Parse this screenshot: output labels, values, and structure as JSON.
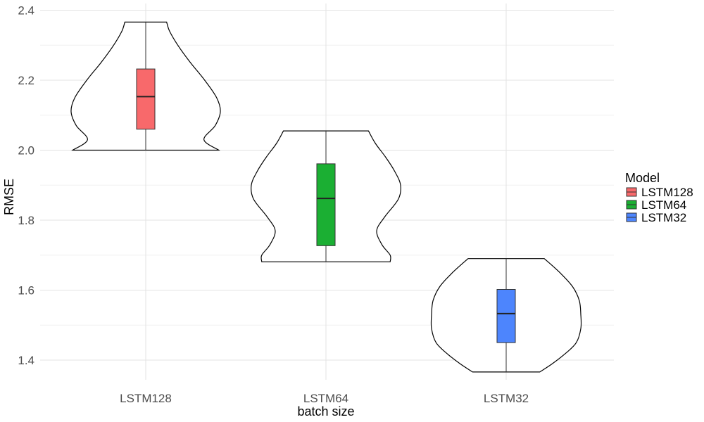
{
  "chart_data": {
    "type": "violin",
    "title": "",
    "xlabel": "batch size",
    "ylabel": "RMSE",
    "ylim": [
      1.33,
      2.42
    ],
    "y_ticks": [
      1.4,
      1.6,
      1.8,
      2.0,
      2.2,
      2.4
    ],
    "y_tick_labels": [
      "1.4",
      "1.6",
      "1.8",
      "2.0",
      "2.2",
      "2.4"
    ],
    "grid": true,
    "legend": {
      "title": "Model",
      "placement": "right",
      "entries": [
        "LSTM128",
        "LSTM64",
        "LSTM32"
      ]
    },
    "categories": [
      "LSTM128",
      "LSTM64",
      "LSTM32"
    ],
    "series": [
      {
        "name": "LSTM128",
        "color": "#f8696b",
        "min": 2.0,
        "q1": 2.06,
        "median": 2.153,
        "q3": 2.232,
        "max": 2.366,
        "violin_profile": [
          [
            2.0,
            0.98
          ],
          [
            2.03,
            0.78
          ],
          [
            2.07,
            0.93
          ],
          [
            2.11,
            1.0
          ],
          [
            2.15,
            0.95
          ],
          [
            2.2,
            0.79
          ],
          [
            2.25,
            0.6
          ],
          [
            2.3,
            0.43
          ],
          [
            2.34,
            0.32
          ],
          [
            2.366,
            0.28
          ]
        ]
      },
      {
        "name": "LSTM64",
        "color": "#1baf33",
        "min": 1.681,
        "q1": 1.727,
        "median": 1.862,
        "q3": 1.961,
        "max": 2.055,
        "violin_profile": [
          [
            1.681,
            0.86
          ],
          [
            1.7,
            0.86
          ],
          [
            1.73,
            0.75
          ],
          [
            1.77,
            0.68
          ],
          [
            1.81,
            0.79
          ],
          [
            1.86,
            0.97
          ],
          [
            1.9,
            1.0
          ],
          [
            1.94,
            0.92
          ],
          [
            1.98,
            0.8
          ],
          [
            2.02,
            0.66
          ],
          [
            2.055,
            0.57
          ]
        ]
      },
      {
        "name": "LSTM32",
        "color": "#4d85fd",
        "min": 1.366,
        "q1": 1.45,
        "median": 1.533,
        "q3": 1.602,
        "max": 1.69,
        "violin_profile": [
          [
            1.366,
            0.45
          ],
          [
            1.39,
            0.62
          ],
          [
            1.42,
            0.8
          ],
          [
            1.45,
            0.94
          ],
          [
            1.49,
            1.0
          ],
          [
            1.53,
            1.0
          ],
          [
            1.57,
            0.98
          ],
          [
            1.61,
            0.89
          ],
          [
            1.65,
            0.72
          ],
          [
            1.69,
            0.51
          ]
        ]
      }
    ]
  }
}
